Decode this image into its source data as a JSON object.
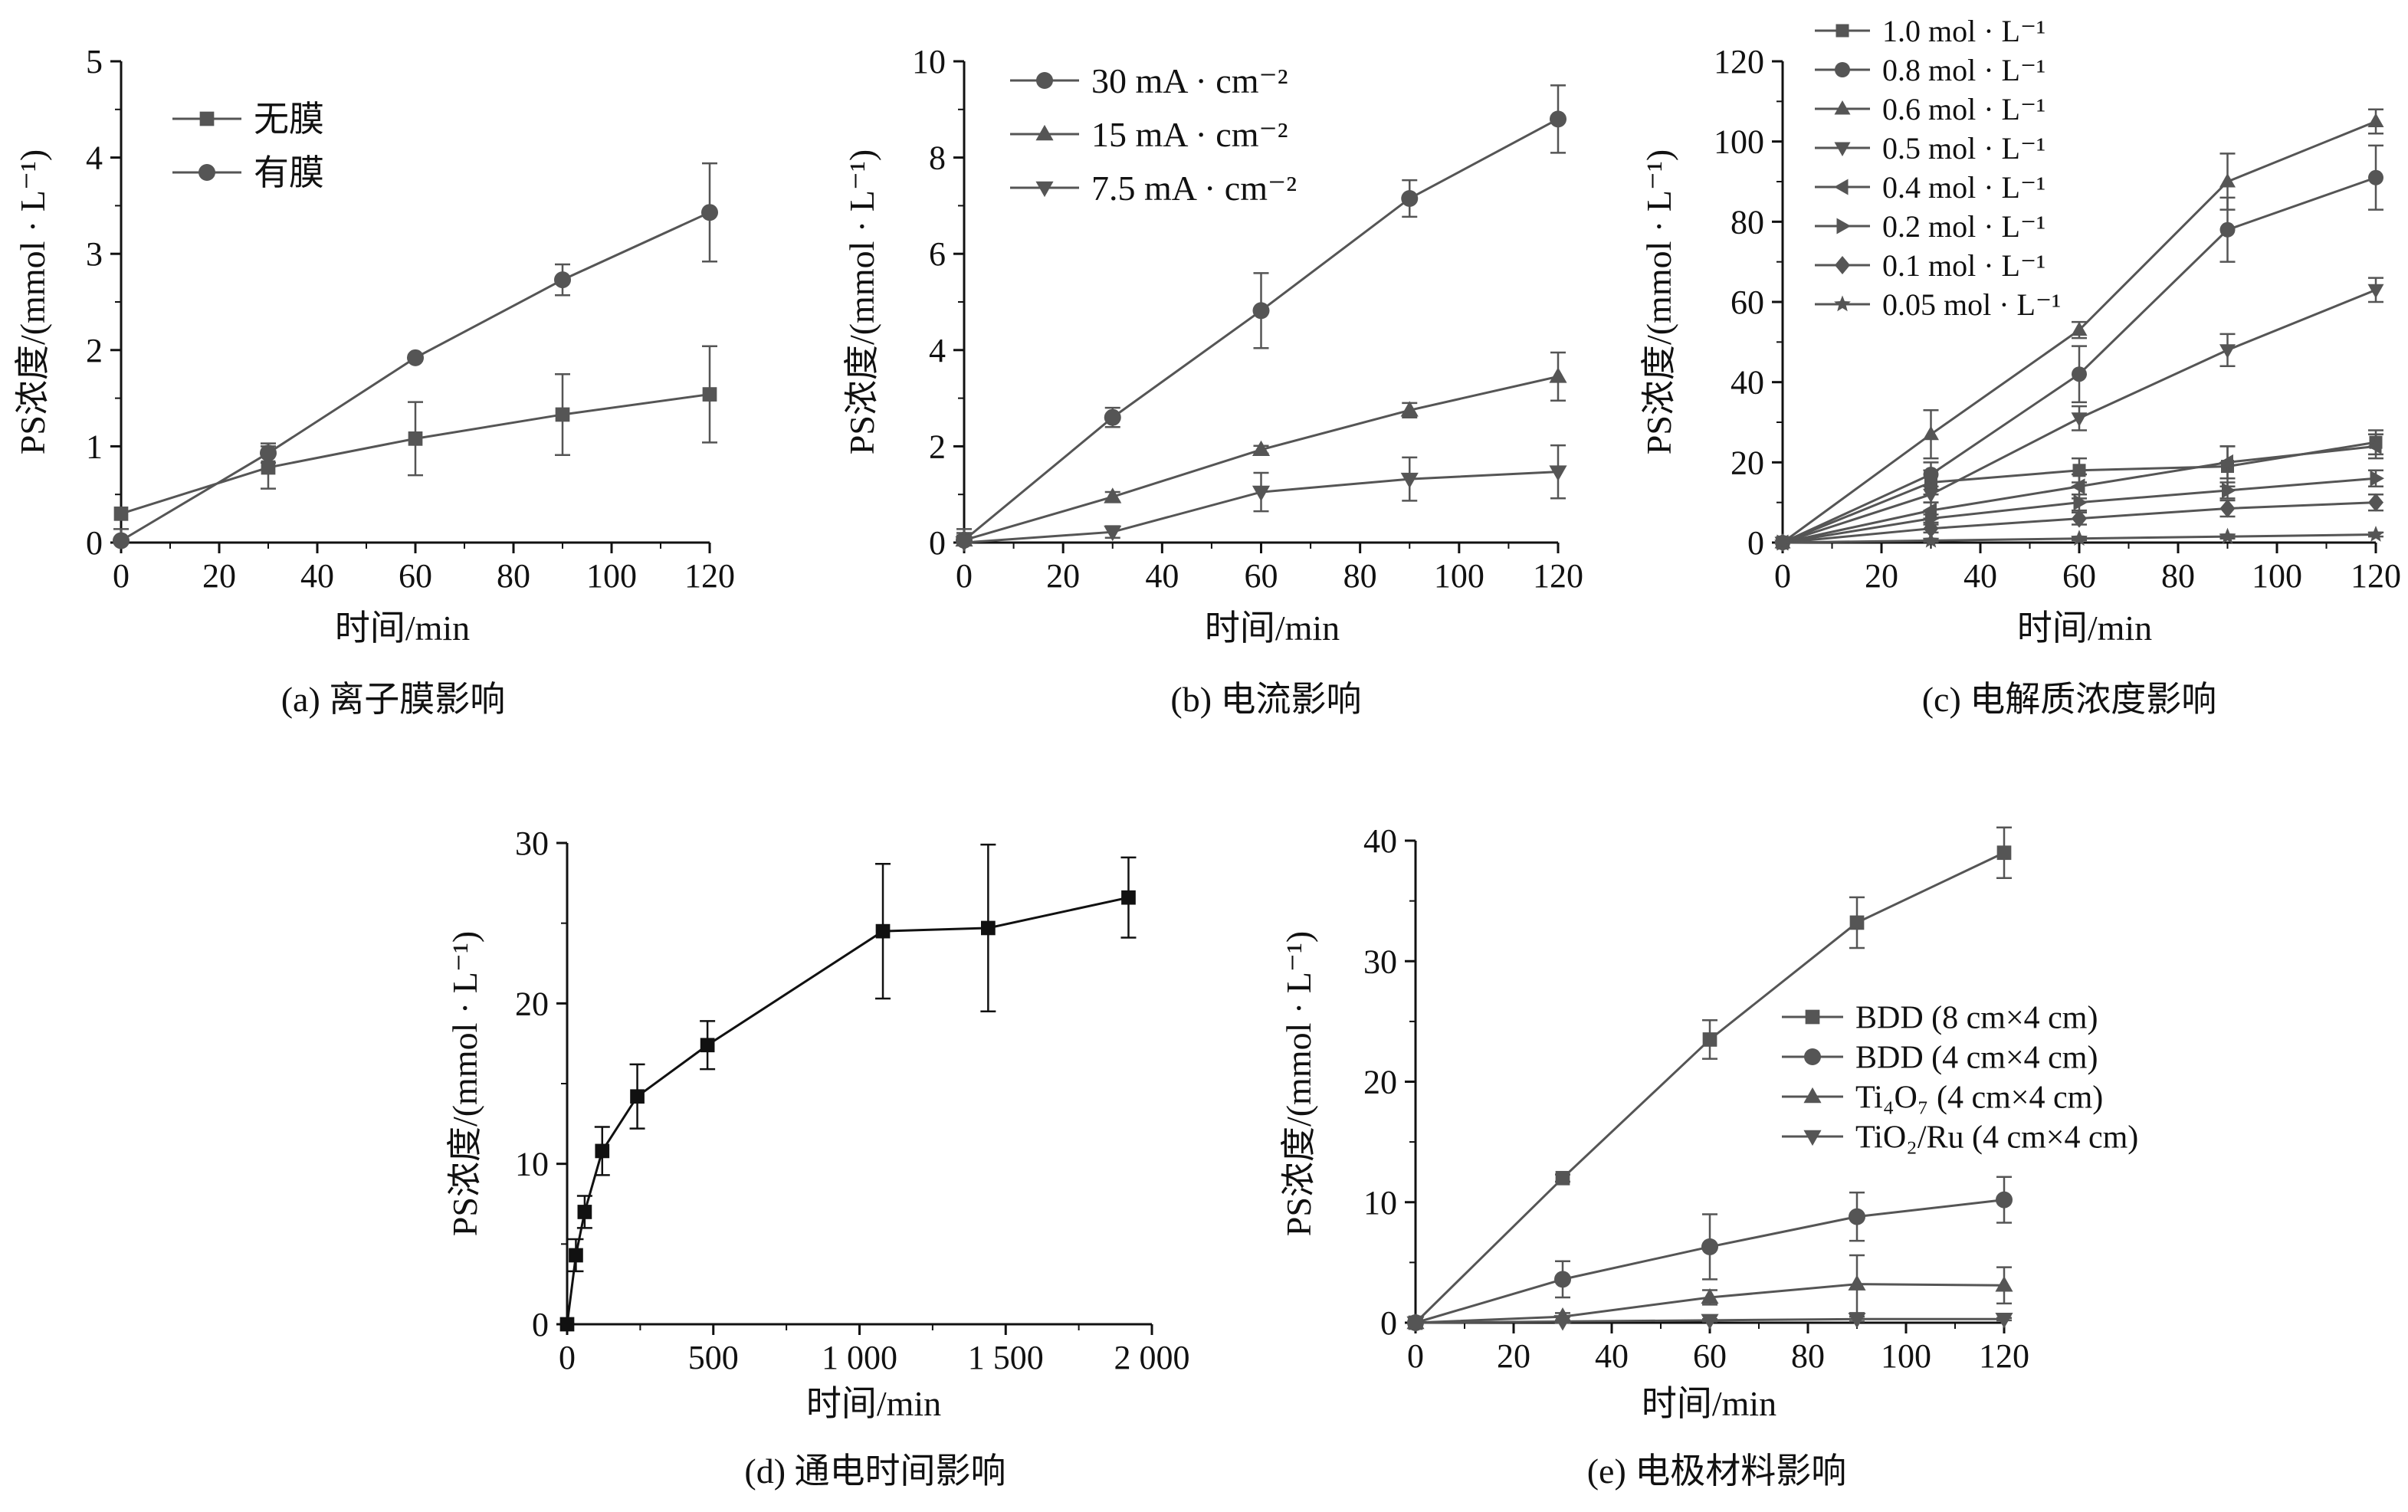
{
  "colors": {
    "primary": "#555555",
    "panel_d": "#111111",
    "axis": "#111111"
  },
  "chart_data": [
    {
      "id": "a",
      "type": "line",
      "caption": "(a) 离子膜影响",
      "xlabel": "时间/min",
      "ylabel": "PS浓度/(mmol · L⁻¹)",
      "xlim": [
        0,
        120
      ],
      "ylim": [
        0,
        5
      ],
      "xticks": [
        0,
        20,
        40,
        60,
        80,
        100,
        120
      ],
      "yticks": [
        0,
        1,
        2,
        3,
        4,
        5
      ],
      "xticklabels": [
        "0",
        "20",
        "40",
        "60",
        "80",
        "100",
        "120"
      ],
      "yticklabels": [
        "0",
        "1",
        "2",
        "3",
        "4",
        "5"
      ],
      "legend_position": "top-left",
      "series": [
        {
          "name": "无膜",
          "marker": "square",
          "x": [
            0,
            30,
            60,
            90,
            120
          ],
          "y": [
            0.3,
            0.78,
            1.08,
            1.33,
            1.54
          ],
          "err": [
            0.0,
            0.22,
            0.38,
            0.42,
            0.5
          ]
        },
        {
          "name": "有膜",
          "marker": "circle",
          "x": [
            0,
            30,
            60,
            90,
            120
          ],
          "y": [
            0.02,
            0.93,
            1.92,
            2.73,
            3.43
          ],
          "err": [
            0.12,
            0.1,
            0.03,
            0.16,
            0.51
          ]
        }
      ]
    },
    {
      "id": "b",
      "type": "line",
      "caption": "(b) 电流影响",
      "xlabel": "时间/min",
      "ylabel": "PS浓度/(mmol · L⁻¹)",
      "xlim": [
        0,
        120
      ],
      "ylim": [
        0,
        10
      ],
      "xticks": [
        0,
        20,
        40,
        60,
        80,
        100,
        120
      ],
      "yticks": [
        0,
        2,
        4,
        6,
        8,
        10
      ],
      "xticklabels": [
        "0",
        "20",
        "40",
        "60",
        "80",
        "100",
        "120"
      ],
      "yticklabels": [
        "0",
        "2",
        "4",
        "6",
        "8",
        "10"
      ],
      "legend_position": "top-left",
      "series": [
        {
          "name": "30 mA · cm⁻²",
          "marker": "circle",
          "x": [
            0,
            30,
            60,
            90,
            120
          ],
          "y": [
            0.05,
            2.6,
            4.82,
            7.15,
            8.8
          ],
          "err": [
            0.15,
            0.2,
            0.78,
            0.38,
            0.7
          ]
        },
        {
          "name": "15 mA · cm⁻²",
          "marker": "triangle-up",
          "x": [
            0,
            30,
            60,
            90,
            120
          ],
          "y": [
            0.05,
            0.95,
            1.93,
            2.75,
            3.45
          ],
          "err": [
            0.1,
            0.1,
            0.08,
            0.15,
            0.5
          ]
        },
        {
          "name": "7.5 mA · cm⁻²",
          "marker": "triangle-down",
          "x": [
            0,
            30,
            60,
            90,
            120
          ],
          "y": [
            0.0,
            0.22,
            1.05,
            1.32,
            1.47
          ],
          "err": [
            0.28,
            0.12,
            0.4,
            0.45,
            0.55
          ]
        }
      ]
    },
    {
      "id": "c",
      "type": "line",
      "caption": "(c) 电解质浓度影响",
      "xlabel": "时间/min",
      "ylabel": "PS浓度/(mmol · L⁻¹)",
      "xlim": [
        0,
        120
      ],
      "ylim": [
        0,
        120
      ],
      "xticks": [
        0,
        20,
        40,
        60,
        80,
        100,
        120
      ],
      "yticks": [
        0,
        20,
        40,
        60,
        80,
        100,
        120
      ],
      "xticklabels": [
        "0",
        "20",
        "40",
        "60",
        "80",
        "100",
        "120"
      ],
      "yticklabels": [
        "0",
        "20",
        "40",
        "60",
        "80",
        "100",
        "120"
      ],
      "legend_position": "top-left",
      "series": [
        {
          "name": "1.0 mol · L⁻¹",
          "marker": "square",
          "x": [
            0,
            30,
            60,
            90,
            120
          ],
          "y": [
            0,
            15,
            18,
            19,
            25
          ],
          "err": [
            0,
            3,
            3,
            5,
            3
          ]
        },
        {
          "name": "0.8 mol · L⁻¹",
          "marker": "circle",
          "x": [
            0,
            30,
            60,
            90,
            120
          ],
          "y": [
            0,
            17,
            42,
            78,
            91
          ],
          "err": [
            0,
            3,
            7,
            8,
            8
          ]
        },
        {
          "name": "0.6 mol · L⁻¹",
          "marker": "triangle-up",
          "x": [
            0,
            30,
            60,
            90,
            120
          ],
          "y": [
            0,
            27,
            53,
            90,
            105
          ],
          "err": [
            0,
            6,
            2,
            7,
            3
          ]
        },
        {
          "name": "0.5 mol · L⁻¹",
          "marker": "triangle-down",
          "x": [
            0,
            30,
            60,
            90,
            120
          ],
          "y": [
            0,
            12,
            31,
            48,
            63
          ],
          "err": [
            0,
            2,
            3,
            4,
            3
          ]
        },
        {
          "name": "0.4 mol · L⁻¹",
          "marker": "triangle-left",
          "x": [
            0,
            30,
            60,
            90,
            120
          ],
          "y": [
            0,
            8,
            14,
            20,
            24
          ],
          "err": [
            0,
            2,
            3,
            4,
            3
          ]
        },
        {
          "name": "0.2 mol · L⁻¹",
          "marker": "triangle-right",
          "x": [
            0,
            30,
            60,
            90,
            120
          ],
          "y": [
            0,
            6,
            10,
            13,
            16
          ],
          "err": [
            0,
            1,
            2,
            2,
            2
          ]
        },
        {
          "name": "0.1 mol · L⁻¹",
          "marker": "diamond",
          "x": [
            0,
            30,
            60,
            90,
            120
          ],
          "y": [
            0,
            3.5,
            6,
            8.5,
            10
          ],
          "err": [
            0,
            1,
            1.5,
            2,
            2
          ]
        },
        {
          "name": "0.05 mol · L⁻¹",
          "marker": "star",
          "x": [
            0,
            30,
            60,
            90,
            120
          ],
          "y": [
            0,
            0.5,
            1,
            1.5,
            2
          ],
          "err": [
            0,
            0.3,
            0.4,
            0.5,
            0.5
          ]
        }
      ]
    },
    {
      "id": "d",
      "type": "line",
      "caption": "(d) 通电时间影响",
      "xlabel": "时间/min",
      "ylabel": "PS浓度/(mmol · L⁻¹)",
      "xlim": [
        0,
        2000
      ],
      "ylim": [
        0,
        30
      ],
      "xticks": [
        0,
        500,
        1000,
        1500,
        2000
      ],
      "yticks": [
        0,
        10,
        20,
        30
      ],
      "xticklabels": [
        "0",
        "500",
        "1 000",
        "1 500",
        "2 000"
      ],
      "yticklabels": [
        "0",
        "10",
        "20",
        "30"
      ],
      "series": [
        {
          "name": "",
          "marker": "square",
          "x": [
            0,
            30,
            60,
            120,
            240,
            480,
            1080,
            1440,
            1920
          ],
          "y": [
            0,
            4.3,
            7.0,
            10.8,
            14.2,
            17.4,
            24.5,
            24.7,
            26.6
          ],
          "err": [
            0,
            1.0,
            1.0,
            1.5,
            2.0,
            1.5,
            4.2,
            5.2,
            2.5
          ]
        }
      ]
    },
    {
      "id": "e",
      "type": "line",
      "caption": "(e) 电极材料影响",
      "xlabel": "时间/min",
      "ylabel": "PS浓度/(mmol · L⁻¹)",
      "xlim": [
        0,
        120
      ],
      "ylim": [
        0,
        40
      ],
      "xticks": [
        0,
        20,
        40,
        60,
        80,
        100,
        120
      ],
      "yticks": [
        0,
        10,
        20,
        30,
        40
      ],
      "xticklabels": [
        "0",
        "20",
        "40",
        "60",
        "80",
        "100",
        "120"
      ],
      "yticklabels": [
        "0",
        "10",
        "20",
        "30",
        "40"
      ],
      "legend_position": "center-right",
      "series": [
        {
          "name": "BDD (8 cm×4 cm)",
          "marker": "square",
          "x": [
            0,
            30,
            60,
            90,
            120
          ],
          "y": [
            0,
            12.0,
            23.5,
            33.2,
            39.0
          ],
          "err": [
            0,
            0.3,
            1.6,
            2.1,
            2.1
          ]
        },
        {
          "name": "BDD (4 cm×4 cm)",
          "marker": "circle",
          "x": [
            0,
            30,
            60,
            90,
            120
          ],
          "y": [
            0,
            3.6,
            6.3,
            8.8,
            10.2
          ],
          "err": [
            0,
            1.5,
            2.7,
            2.0,
            1.9
          ]
        },
        {
          "name": "Ti₄O₇ (4 cm×4 cm)",
          "marker": "triangle-up",
          "x": [
            0,
            30,
            60,
            90,
            120
          ],
          "y": [
            0,
            0.5,
            2.1,
            3.2,
            3.1
          ],
          "err": [
            0,
            0.3,
            0.6,
            2.4,
            1.5
          ]
        },
        {
          "name": "TiO₂/Ru (4 cm×4 cm)",
          "marker": "triangle-down",
          "x": [
            0,
            30,
            60,
            90,
            120
          ],
          "y": [
            0,
            0.1,
            0.2,
            0.3,
            0.3
          ],
          "err": [
            0,
            0.1,
            0.1,
            0.2,
            0.1
          ]
        }
      ]
    }
  ]
}
